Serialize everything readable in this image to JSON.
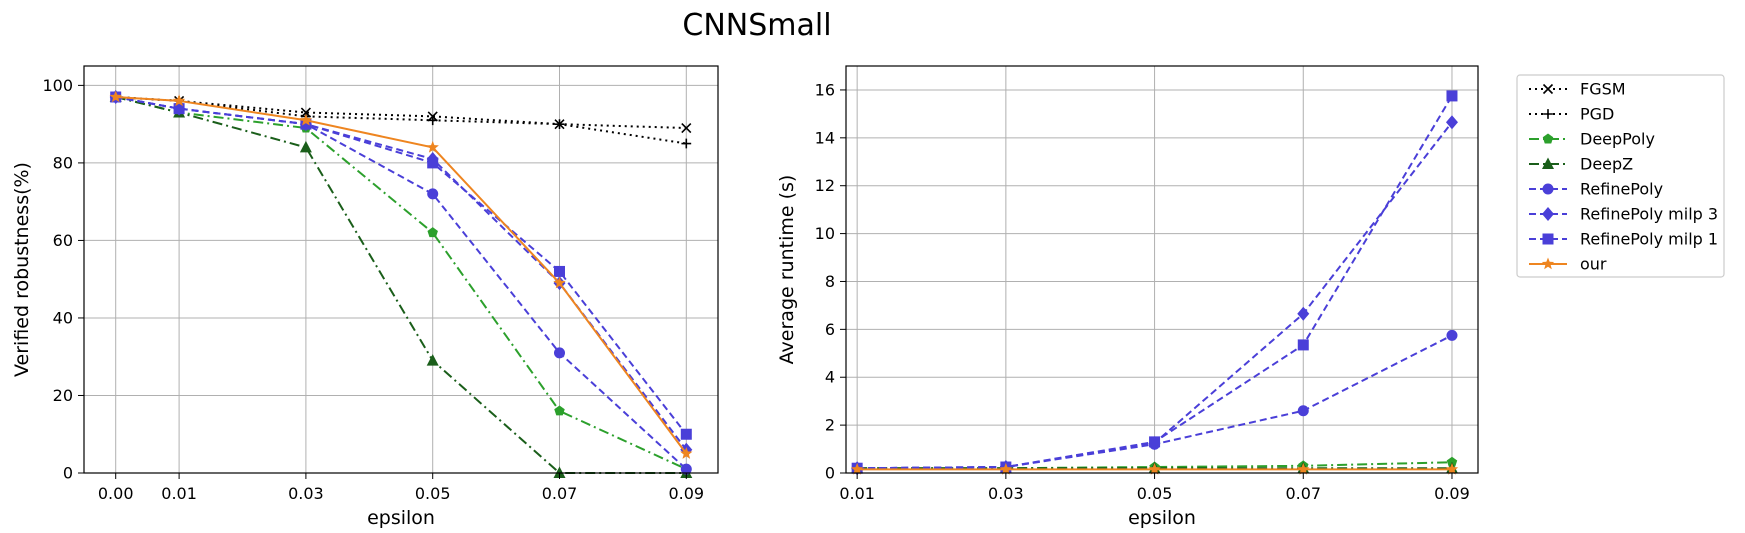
{
  "figure": {
    "title": "CNNSmall"
  },
  "chart_data": [
    {
      "id": "robustness",
      "type": "line",
      "xlabel": "epsilon",
      "ylabel": "Verified robustness(%)",
      "xlim": [
        -0.005,
        0.095
      ],
      "ylim": [
        0,
        105
      ],
      "xticks": [
        0.0,
        0.01,
        0.03,
        0.05,
        0.07,
        0.09
      ],
      "xticklabels": [
        "0.00",
        "0.01",
        "0.03",
        "0.05",
        "0.07",
        "0.09"
      ],
      "yticks": [
        0,
        20,
        40,
        60,
        80,
        100
      ],
      "yticklabels": [
        "0",
        "20",
        "40",
        "60",
        "80",
        "100"
      ],
      "grid": true,
      "x": [
        0.0,
        0.01,
        0.03,
        0.05,
        0.07,
        0.09
      ],
      "series": [
        {
          "name": "FGSM",
          "values": [
            97,
            96,
            93,
            92,
            90,
            89
          ],
          "color": "#000000",
          "dash": "dotted",
          "marker": "x"
        },
        {
          "name": "PGD",
          "values": [
            97,
            96,
            92,
            91,
            90,
            85
          ],
          "color": "#000000",
          "dash": "dotted",
          "marker": "plus"
        },
        {
          "name": "DeepPoly",
          "values": [
            97,
            93,
            89,
            62,
            16,
            1
          ],
          "color": "#2ca02c",
          "dash": "dashdot",
          "marker": "pentagon"
        },
        {
          "name": "DeepZ",
          "values": [
            97,
            93,
            84,
            29,
            0,
            0
          ],
          "color": "#1a5e1a",
          "dash": "dashdot",
          "marker": "triangle"
        },
        {
          "name": "RefinePoly",
          "values": [
            97,
            94,
            90,
            72,
            31,
            1
          ],
          "color": "#4a3fd8",
          "dash": "dashed",
          "marker": "circle"
        },
        {
          "name": "RefinePoly milp 3",
          "values": [
            97,
            94,
            90,
            81,
            49,
            6
          ],
          "color": "#4a3fd8",
          "dash": "dashed",
          "marker": "diamond"
        },
        {
          "name": "RefinePoly milp 1",
          "values": [
            97,
            94,
            90,
            80,
            52,
            10
          ],
          "color": "#4a3fd8",
          "dash": "dashed",
          "marker": "square"
        },
        {
          "name": "our",
          "values": [
            97,
            96,
            91,
            84,
            49,
            5
          ],
          "color": "#ee8520",
          "dash": "solid",
          "marker": "star"
        }
      ]
    },
    {
      "id": "runtime",
      "type": "line",
      "xlabel": "epsilon",
      "ylabel": "Average runtime (s)",
      "xlim": [
        0.0085,
        0.0935
      ],
      "ylim": [
        0,
        17
      ],
      "xticks": [
        0.01,
        0.03,
        0.05,
        0.07,
        0.09
      ],
      "xticklabels": [
        "0.01",
        "0.03",
        "0.05",
        "0.07",
        "0.09"
      ],
      "yticks": [
        0,
        2,
        4,
        6,
        8,
        10,
        12,
        14,
        16
      ],
      "yticklabels": [
        "0",
        "2",
        "4",
        "6",
        "8",
        "10",
        "12",
        "14",
        "16"
      ],
      "grid": true,
      "x": [
        0.01,
        0.03,
        0.05,
        0.07,
        0.09
      ],
      "series": [
        {
          "name": "DeepPoly",
          "values": [
            0.2,
            0.2,
            0.25,
            0.3,
            0.45
          ],
          "color": "#2ca02c",
          "dash": "dashdot",
          "marker": "pentagon"
        },
        {
          "name": "DeepZ",
          "values": [
            0.2,
            0.2,
            0.2,
            0.2,
            0.2
          ],
          "color": "#1a5e1a",
          "dash": "dashdot",
          "marker": "triangle"
        },
        {
          "name": "RefinePoly",
          "values": [
            0.2,
            0.25,
            1.2,
            2.6,
            5.75
          ],
          "color": "#4a3fd8",
          "dash": "dashed",
          "marker": "circle"
        },
        {
          "name": "RefinePoly milp 3",
          "values": [
            0.2,
            0.25,
            1.25,
            6.65,
            14.65
          ],
          "color": "#4a3fd8",
          "dash": "dashed",
          "marker": "diamond"
        },
        {
          "name": "RefinePoly milp 1",
          "values": [
            0.2,
            0.25,
            1.3,
            5.35,
            15.75
          ],
          "color": "#4a3fd8",
          "dash": "dashed",
          "marker": "square"
        },
        {
          "name": "our",
          "values": [
            0.15,
            0.15,
            0.15,
            0.15,
            0.15
          ],
          "color": "#ee8520",
          "dash": "solid",
          "marker": "star"
        }
      ]
    }
  ],
  "legend": {
    "placement": "right",
    "entries": [
      {
        "name": "FGSM",
        "color": "#000000",
        "dash": "dotted",
        "marker": "x"
      },
      {
        "name": "PGD",
        "color": "#000000",
        "dash": "dotted",
        "marker": "plus"
      },
      {
        "name": "DeepPoly",
        "color": "#2ca02c",
        "dash": "dashdot",
        "marker": "pentagon"
      },
      {
        "name": "DeepZ",
        "color": "#1a5e1a",
        "dash": "dashdot",
        "marker": "triangle"
      },
      {
        "name": "RefinePoly",
        "color": "#4a3fd8",
        "dash": "dashed",
        "marker": "circle"
      },
      {
        "name": "RefinePoly milp 3",
        "color": "#4a3fd8",
        "dash": "dashed",
        "marker": "diamond"
      },
      {
        "name": "RefinePoly milp 1",
        "color": "#4a3fd8",
        "dash": "dashed",
        "marker": "square"
      },
      {
        "name": "our",
        "color": "#ee8520",
        "dash": "solid",
        "marker": "star"
      }
    ]
  }
}
